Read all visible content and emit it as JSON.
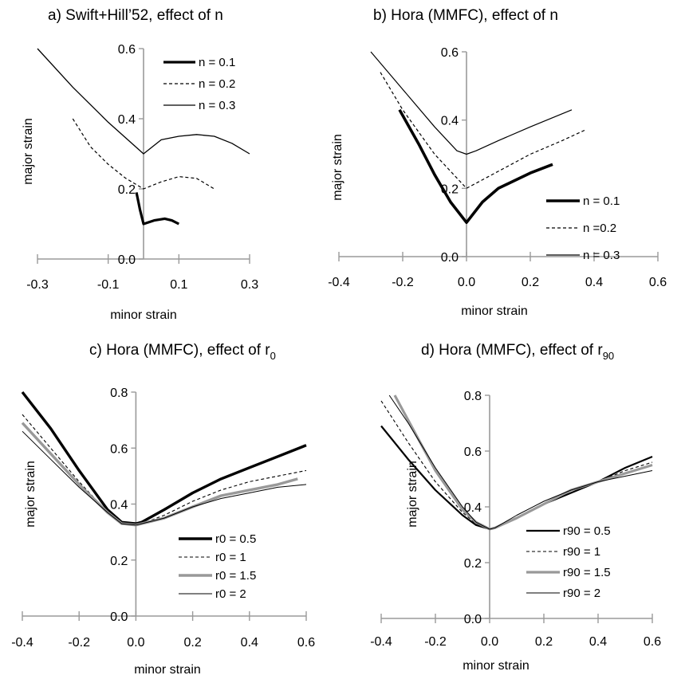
{
  "figure": {
    "panels": [
      "a",
      "b",
      "c",
      "d"
    ]
  },
  "chart_data": [
    {
      "id": "a",
      "type": "line",
      "title": "a) Swift+Hill’52, effect of n",
      "xlabel": "minor strain",
      "ylabel": "major strain",
      "xlim": [
        -0.3,
        0.3
      ],
      "ylim": [
        0.0,
        0.6
      ],
      "xticks": [
        "-0.3",
        "-0.1",
        "0.1",
        "0.3"
      ],
      "yticks": [
        "0.0",
        "0.2",
        "0.4",
        "0.6"
      ],
      "legend_position": "top-right",
      "series": [
        {
          "name": "n = 0.1",
          "color": "#000000",
          "width": 3.2,
          "dash": "",
          "x": [
            -0.02,
            -0.01,
            0.0,
            0.03,
            0.06,
            0.08,
            0.1
          ],
          "y": [
            0.19,
            0.14,
            0.1,
            0.11,
            0.115,
            0.11,
            0.1
          ]
        },
        {
          "name": "n = 0.2",
          "color": "#000000",
          "width": 1.2,
          "dash": "4,3",
          "x": [
            -0.2,
            -0.15,
            -0.1,
            -0.05,
            0.0,
            0.05,
            0.1,
            0.15,
            0.2
          ],
          "y": [
            0.4,
            0.32,
            0.27,
            0.23,
            0.2,
            0.22,
            0.235,
            0.23,
            0.2
          ]
        },
        {
          "name": "n = 0.3",
          "color": "#000000",
          "width": 1.3,
          "dash": "",
          "x": [
            -0.3,
            -0.2,
            -0.1,
            0.0,
            0.05,
            0.1,
            0.15,
            0.2,
            0.25,
            0.3
          ],
          "y": [
            0.6,
            0.49,
            0.39,
            0.3,
            0.34,
            0.35,
            0.355,
            0.35,
            0.33,
            0.3
          ]
        }
      ]
    },
    {
      "id": "b",
      "type": "line",
      "title": "b) Hora (MMFC), effect of n",
      "xlabel": "minor strain",
      "ylabel": "major strain",
      "xlim": [
        -0.4,
        0.6
      ],
      "ylim": [
        0.0,
        0.6
      ],
      "xticks": [
        "-0.4",
        "-0.2",
        "0.0",
        "0.2",
        "0.4",
        "0.6"
      ],
      "yticks": [
        "0.0",
        "0.2",
        "0.4",
        "0.6"
      ],
      "legend_position": "bottom-right",
      "series": [
        {
          "name": "n = 0.1",
          "color": "#000000",
          "width": 3.6,
          "dash": "",
          "x": [
            -0.21,
            -0.15,
            -0.1,
            -0.05,
            0.0,
            0.05,
            0.1,
            0.2,
            0.27
          ],
          "y": [
            0.43,
            0.33,
            0.24,
            0.16,
            0.1,
            0.16,
            0.2,
            0.245,
            0.27
          ]
        },
        {
          "name": "n =0.2",
          "color": "#000000",
          "width": 1.2,
          "dash": "4,3",
          "x": [
            -0.27,
            -0.2,
            -0.1,
            0.0,
            0.1,
            0.2,
            0.3,
            0.37
          ],
          "y": [
            0.54,
            0.43,
            0.3,
            0.2,
            0.25,
            0.3,
            0.34,
            0.37
          ]
        },
        {
          "name": "n = 0.3",
          "color": "#000000",
          "width": 1.2,
          "dash": "",
          "x": [
            -0.3,
            -0.2,
            -0.1,
            -0.03,
            0.0,
            0.03,
            0.1,
            0.2,
            0.33
          ],
          "y": [
            0.6,
            0.49,
            0.38,
            0.31,
            0.3,
            0.31,
            0.34,
            0.38,
            0.43
          ]
        }
      ]
    },
    {
      "id": "c",
      "type": "line",
      "title": "c) Hora (MMFC), effect of r",
      "title_subscript": "0",
      "xlabel": "minor strain",
      "ylabel": "major strain",
      "xlim": [
        -0.4,
        0.6
      ],
      "ylim": [
        0.0,
        0.8
      ],
      "xticks": [
        "-0.4",
        "-0.2",
        "0.0",
        "0.2",
        "0.4",
        "0.6"
      ],
      "yticks": [
        "0.0",
        "0.2",
        "0.4",
        "0.6",
        "0.8"
      ],
      "legend_position": "bottom-right",
      "series": [
        {
          "name": "r0 = 0.5",
          "color": "#000000",
          "width": 3.4,
          "dash": "",
          "x": [
            -0.4,
            -0.3,
            -0.2,
            -0.1,
            -0.05,
            0.0,
            0.02,
            0.1,
            0.2,
            0.3,
            0.4,
            0.5,
            0.6
          ],
          "y": [
            0.8,
            0.67,
            0.52,
            0.38,
            0.335,
            0.33,
            0.335,
            0.38,
            0.44,
            0.49,
            0.53,
            0.57,
            0.61
          ]
        },
        {
          "name": "r0 = 1",
          "color": "#000000",
          "width": 1.1,
          "dash": "4,3",
          "x": [
            -0.4,
            -0.3,
            -0.2,
            -0.1,
            -0.05,
            0.0,
            0.02,
            0.1,
            0.2,
            0.3,
            0.4,
            0.5,
            0.6
          ],
          "y": [
            0.72,
            0.6,
            0.48,
            0.37,
            0.33,
            0.325,
            0.33,
            0.36,
            0.41,
            0.45,
            0.48,
            0.5,
            0.52
          ]
        },
        {
          "name": "r0 = 1.5",
          "color": "#999999",
          "width": 3.4,
          "dash": "",
          "x": [
            -0.4,
            -0.3,
            -0.2,
            -0.1,
            -0.05,
            0.0,
            0.02,
            0.1,
            0.2,
            0.3,
            0.4,
            0.5,
            0.57
          ],
          "y": [
            0.69,
            0.58,
            0.47,
            0.37,
            0.33,
            0.325,
            0.33,
            0.35,
            0.39,
            0.43,
            0.45,
            0.47,
            0.49
          ]
        },
        {
          "name": "r0 = 2",
          "color": "#000000",
          "width": 1.0,
          "dash": "",
          "x": [
            -0.4,
            -0.3,
            -0.2,
            -0.1,
            -0.05,
            0.0,
            0.02,
            0.1,
            0.2,
            0.3,
            0.4,
            0.5,
            0.6
          ],
          "y": [
            0.66,
            0.56,
            0.46,
            0.37,
            0.33,
            0.325,
            0.33,
            0.35,
            0.39,
            0.42,
            0.44,
            0.46,
            0.47
          ]
        }
      ]
    },
    {
      "id": "d",
      "type": "line",
      "title": "d) Hora (MMFC), effect of r",
      "title_subscript": "90",
      "xlabel": "minor strain",
      "ylabel": "major strain",
      "xlim": [
        -0.4,
        0.6
      ],
      "ylim": [
        0.0,
        0.8
      ],
      "xticks": [
        "-0.4",
        "-0.2",
        "0.0",
        "0.2",
        "0.4",
        "0.6"
      ],
      "yticks": [
        "0.0",
        "0.2",
        "0.4",
        "0.6",
        "0.8"
      ],
      "legend_position": "bottom-right",
      "series": [
        {
          "name": "r90 = 0.5",
          "color": "#000000",
          "width": 2.2,
          "dash": "",
          "x": [
            -0.4,
            -0.3,
            -0.2,
            -0.1,
            -0.05,
            0.0,
            0.02,
            0.1,
            0.2,
            0.3,
            0.4,
            0.5,
            0.6
          ],
          "y": [
            0.69,
            0.57,
            0.46,
            0.37,
            0.335,
            0.32,
            0.325,
            0.36,
            0.41,
            0.45,
            0.49,
            0.54,
            0.58
          ]
        },
        {
          "name": "r90 = 1",
          "color": "#000000",
          "width": 1.1,
          "dash": "4,3",
          "x": [
            -0.4,
            -0.3,
            -0.2,
            -0.1,
            -0.05,
            0.0,
            0.02,
            0.1,
            0.2,
            0.3,
            0.4,
            0.5,
            0.6
          ],
          "y": [
            0.78,
            0.63,
            0.49,
            0.38,
            0.34,
            0.32,
            0.325,
            0.36,
            0.41,
            0.45,
            0.49,
            0.53,
            0.56
          ]
        },
        {
          "name": "r90 = 1.5",
          "color": "#999999",
          "width": 3.2,
          "dash": "",
          "x": [
            -0.35,
            -0.3,
            -0.2,
            -0.1,
            -0.05,
            0.0,
            0.02,
            0.1,
            0.2,
            0.3,
            0.4,
            0.5,
            0.6
          ],
          "y": [
            0.8,
            0.71,
            0.53,
            0.39,
            0.345,
            0.32,
            0.325,
            0.36,
            0.41,
            0.46,
            0.49,
            0.52,
            0.55
          ]
        },
        {
          "name": "r90 = 2",
          "color": "#000000",
          "width": 1.0,
          "dash": "",
          "x": [
            -0.37,
            -0.3,
            -0.2,
            -0.1,
            -0.05,
            0.0,
            0.02,
            0.1,
            0.2,
            0.3,
            0.4,
            0.5,
            0.6
          ],
          "y": [
            0.8,
            0.7,
            0.54,
            0.4,
            0.345,
            0.32,
            0.325,
            0.37,
            0.42,
            0.46,
            0.49,
            0.51,
            0.53
          ]
        }
      ]
    }
  ]
}
